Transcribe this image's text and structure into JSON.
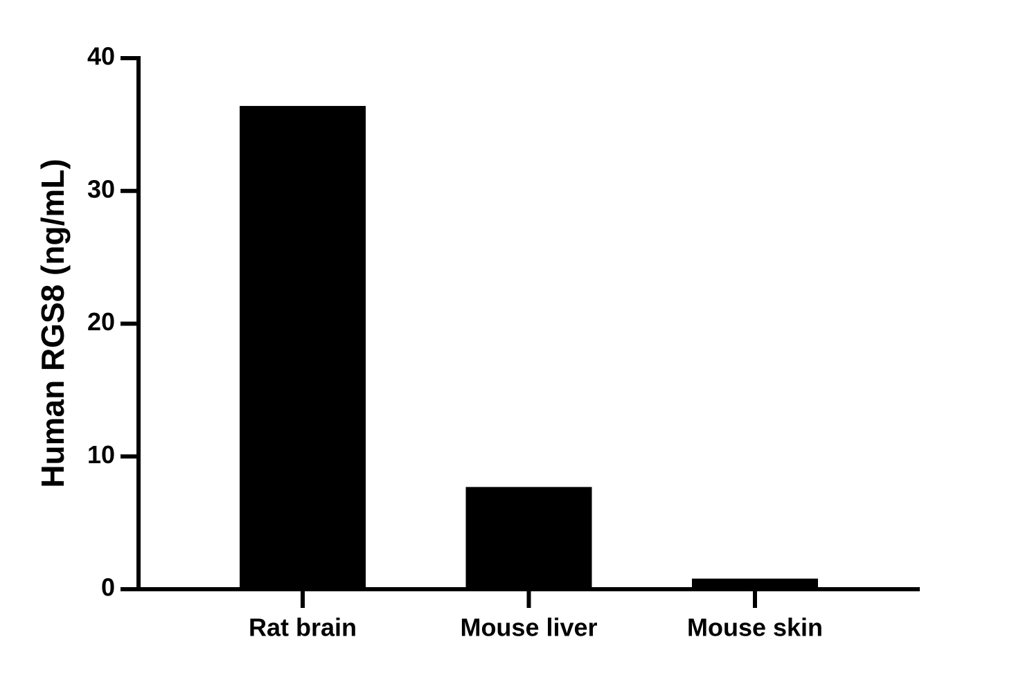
{
  "chart_data": {
    "type": "bar",
    "y_label": "Human RGS8 (ng/mL)",
    "categories": [
      "Rat brain",
      "Mouse liver",
      "Mouse skin"
    ],
    "values": [
      36.4,
      7.7,
      0.8
    ],
    "color": "#000000",
    "ylim": [
      0,
      40
    ],
    "yticks": [
      0,
      10,
      20,
      30,
      40
    ],
    "grid": false
  }
}
